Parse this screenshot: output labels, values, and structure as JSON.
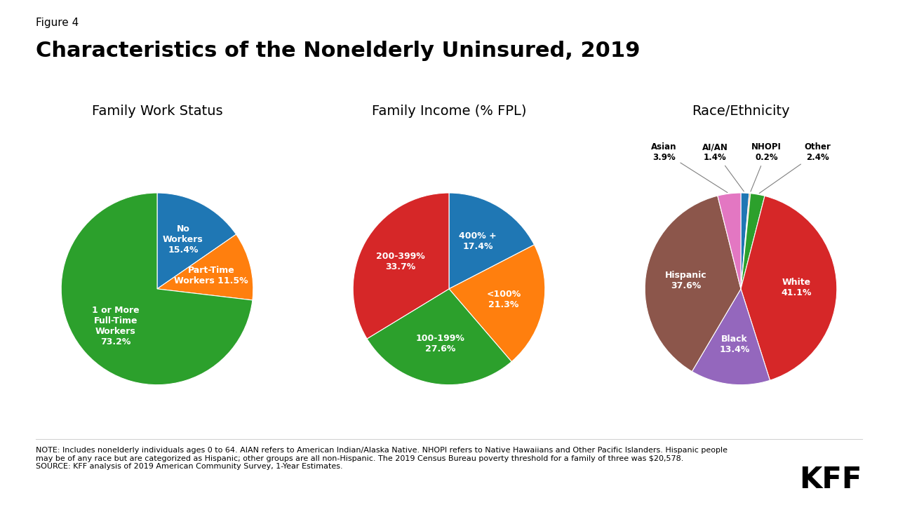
{
  "title": "Characteristics of the Nonelderly Uninsured, 2019",
  "annotations": [
    "Figure 4",
    "NOTE: Includes nonelderly individuals ages 0 to 64. AIAN refers to American Indian/Alaska Native. NHOPI refers to Native Hawaiians and Other Pacific Islanders. Hispanic people\nmay be of any race but are categorized as Hispanic; other groups are all non-Hispanic. The 2019 Census Bureau poverty threshold for a family of three was $20,578.\nSOURCE: KFF analysis of 2019 American Community Survey, 1-Year Estimates.",
    "KFF"
  ],
  "chart_data": [
    {
      "type": "pie",
      "title": "Family Work Status",
      "categories": [
        "No\nWorkers\n15.4%",
        "Part-Time\nWorkers 11.5%",
        "1 or More\nFull-Time\nWorkers\n73.2%"
      ],
      "values": [
        15.4,
        11.5,
        73.2
      ],
      "data_labels": true
    },
    {
      "type": "pie",
      "title": "Family Income (% FPL)",
      "categories": [
        "400% +\n17.4%",
        "<100%\n21.3%",
        "100-199%\n27.6%",
        "200-399%\n33.7%"
      ],
      "values": [
        17.4,
        21.3,
        27.6,
        33.7
      ],
      "data_labels": true
    },
    {
      "type": "pie",
      "title": "Race/Ethnicity",
      "categories": [
        "AI/AN\n1.4%",
        "NHOPI\n0.2%",
        "Other\n2.4%",
        "White\n41.1%",
        "Black\n13.4%",
        "Hispanic\n37.6%",
        "Asian\n3.9%"
      ],
      "values": [
        1.4,
        0.2,
        2.4,
        41.1,
        13.4,
        37.6,
        3.9
      ],
      "data_labels": true
    }
  ]
}
